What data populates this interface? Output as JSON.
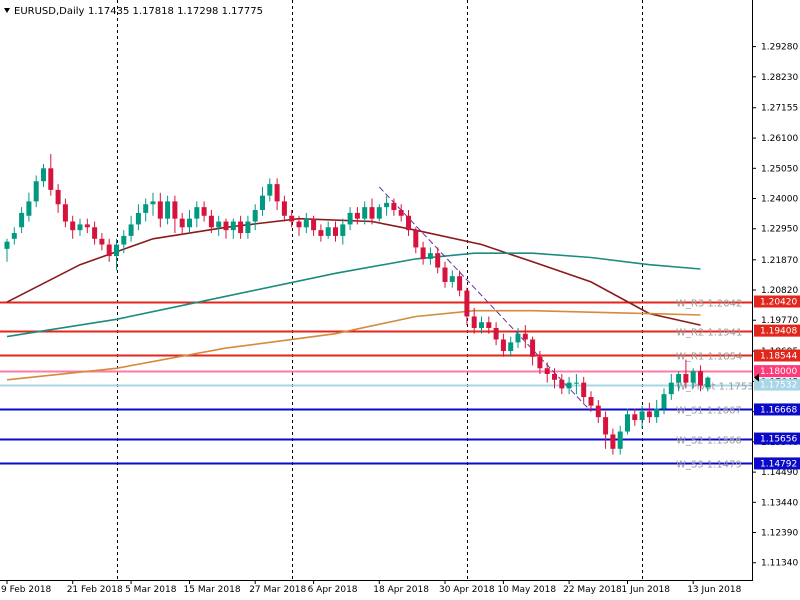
{
  "header": {
    "symbol": "EURUSD,Daily",
    "ohlc": "1.17435 1.17818 1.17298 1.17775"
  },
  "chart_data": {
    "type": "candlestick",
    "ylim": [
      1.1074,
      1.309
    ],
    "price_ticks": [
      "1.29280",
      "1.28230",
      "1.27155",
      "1.26100",
      "1.25050",
      "1.24000",
      "1.22950",
      "1.21870",
      "1.20820",
      "1.19770",
      "1.18695",
      "1.17645",
      "1.16590",
      "1.15540",
      "1.14490",
      "1.13440",
      "1.12390",
      "1.11340"
    ],
    "date_labels": [
      {
        "i": 0,
        "label": "9 Feb 2018"
      },
      {
        "i": 9,
        "label": "21 Feb 2018"
      },
      {
        "i": 17,
        "label": "5 Mar 2018"
      },
      {
        "i": 25,
        "label": "15 Mar 2018"
      },
      {
        "i": 34,
        "label": "27 Mar 2018"
      },
      {
        "i": 42,
        "label": "6 Apr 2018"
      },
      {
        "i": 51,
        "label": "18 Apr 2018"
      },
      {
        "i": 60,
        "label": "30 Apr 2018"
      },
      {
        "i": 68,
        "label": "10 May 2018"
      },
      {
        "i": 77,
        "label": "22 May 2018"
      },
      {
        "i": 85,
        "label": "1 Jun 2018"
      },
      {
        "i": 94,
        "label": "13 Jun 2018"
      }
    ],
    "separators": [
      15,
      39,
      63,
      87
    ],
    "bull_color": "#009a82",
    "bear_color": "#d6133c",
    "candles": [
      [
        1.2225,
        1.225,
        1.218,
        1.226
      ],
      [
        1.226,
        1.228,
        1.224,
        1.23
      ],
      [
        1.23,
        1.235,
        1.228,
        1.237
      ],
      [
        1.234,
        1.239,
        1.232,
        1.242
      ],
      [
        1.239,
        1.246,
        1.237,
        1.248
      ],
      [
        1.246,
        1.2505,
        1.244,
        1.252
      ],
      [
        1.2505,
        1.243,
        1.241,
        1.2555
      ],
      [
        1.243,
        1.238,
        1.235,
        1.245
      ],
      [
        1.238,
        1.232,
        1.23,
        1.24
      ],
      [
        1.232,
        1.229,
        1.226,
        1.234
      ],
      [
        1.229,
        1.231,
        1.227,
        1.233
      ],
      [
        1.231,
        1.23,
        1.228,
        1.233
      ],
      [
        1.23,
        1.226,
        1.224,
        1.232
      ],
      [
        1.226,
        1.224,
        1.222,
        1.228
      ],
      [
        1.224,
        1.22,
        1.218,
        1.226
      ],
      [
        1.22,
        1.224,
        1.215,
        1.226
      ],
      [
        1.224,
        1.227,
        1.221,
        1.229
      ],
      [
        1.227,
        1.231,
        1.225,
        1.234
      ],
      [
        1.231,
        1.235,
        1.229,
        1.238
      ],
      [
        1.235,
        1.238,
        1.232,
        1.24
      ],
      [
        1.238,
        1.239,
        1.234,
        1.242
      ],
      [
        1.239,
        1.233,
        1.23,
        1.242
      ],
      [
        1.233,
        1.239,
        1.231,
        1.241
      ],
      [
        1.239,
        1.233,
        1.228,
        1.241
      ],
      [
        1.233,
        1.23,
        1.228,
        1.235
      ],
      [
        1.23,
        1.233,
        1.228,
        1.236
      ],
      [
        1.233,
        1.237,
        1.23,
        1.239
      ],
      [
        1.237,
        1.234,
        1.232,
        1.239
      ],
      [
        1.234,
        1.23,
        1.228,
        1.236
      ],
      [
        1.23,
        1.232,
        1.227,
        1.234
      ],
      [
        1.232,
        1.229,
        1.226,
        1.233
      ],
      [
        1.229,
        1.232,
        1.226,
        1.233
      ],
      [
        1.232,
        1.228,
        1.226,
        1.234
      ],
      [
        1.228,
        1.232,
        1.226,
        1.234
      ],
      [
        1.232,
        1.236,
        1.229,
        1.238
      ],
      [
        1.236,
        1.241,
        1.234,
        1.244
      ],
      [
        1.241,
        1.245,
        1.239,
        1.247
      ],
      [
        1.245,
        1.239,
        1.236,
        1.247
      ],
      [
        1.239,
        1.234,
        1.232,
        1.241
      ],
      [
        1.234,
        1.232,
        1.23,
        1.236
      ],
      [
        1.232,
        1.23,
        1.227,
        1.234
      ],
      [
        1.23,
        1.233,
        1.228,
        1.235
      ],
      [
        1.233,
        1.229,
        1.227,
        1.234
      ],
      [
        1.229,
        1.227,
        1.225,
        1.231
      ],
      [
        1.227,
        1.23,
        1.226,
        1.232
      ],
      [
        1.23,
        1.227,
        1.225,
        1.232
      ],
      [
        1.227,
        1.231,
        1.224,
        1.233
      ],
      [
        1.231,
        1.235,
        1.229,
        1.237
      ],
      [
        1.235,
        1.233,
        1.231,
        1.237
      ],
      [
        1.233,
        1.237,
        1.231,
        1.239
      ],
      [
        1.237,
        1.233,
        1.231,
        1.24
      ],
      [
        1.233,
        1.237,
        1.232,
        1.238
      ],
      [
        1.237,
        1.2385,
        1.234,
        1.241
      ],
      [
        1.2385,
        1.236,
        1.234,
        1.24
      ],
      [
        1.236,
        1.234,
        1.232,
        1.238
      ],
      [
        1.234,
        1.229,
        1.227,
        1.236
      ],
      [
        1.229,
        1.223,
        1.221,
        1.23
      ],
      [
        1.223,
        1.219,
        1.217,
        1.225
      ],
      [
        1.219,
        1.221,
        1.217,
        1.223
      ],
      [
        1.221,
        1.216,
        1.214,
        1.223
      ],
      [
        1.216,
        1.211,
        1.209,
        1.218
      ],
      [
        1.211,
        1.213,
        1.209,
        1.215
      ],
      [
        1.213,
        1.208,
        1.206,
        1.215
      ],
      [
        1.208,
        1.199,
        1.196,
        1.209
      ],
      [
        1.199,
        1.195,
        1.193,
        1.202
      ],
      [
        1.195,
        1.197,
        1.193,
        1.199
      ],
      [
        1.197,
        1.195,
        1.193,
        1.199
      ],
      [
        1.195,
        1.191,
        1.189,
        1.197
      ],
      [
        1.191,
        1.187,
        1.185,
        1.193
      ],
      [
        1.187,
        1.19,
        1.185,
        1.192
      ],
      [
        1.19,
        1.193,
        1.188,
        1.195
      ],
      [
        1.193,
        1.191,
        1.188,
        1.196
      ],
      [
        1.191,
        1.185,
        1.182,
        1.192
      ],
      [
        1.185,
        1.181,
        1.179,
        1.187
      ],
      [
        1.181,
        1.179,
        1.176,
        1.183
      ],
      [
        1.179,
        1.177,
        1.174,
        1.181
      ],
      [
        1.177,
        1.174,
        1.172,
        1.179
      ],
      [
        1.174,
        1.176,
        1.172,
        1.178
      ],
      [
        1.176,
        1.176,
        1.172,
        1.179
      ],
      [
        1.176,
        1.171,
        1.169,
        1.178
      ],
      [
        1.171,
        1.168,
        1.166,
        1.173
      ],
      [
        1.168,
        1.164,
        1.162,
        1.17
      ],
      [
        1.164,
        1.158,
        1.153,
        1.166
      ],
      [
        1.158,
        1.153,
        1.151,
        1.16
      ],
      [
        1.153,
        1.159,
        1.151,
        1.161
      ],
      [
        1.159,
        1.165,
        1.158,
        1.167
      ],
      [
        1.165,
        1.163,
        1.161,
        1.167
      ],
      [
        1.163,
        1.166,
        1.16,
        1.168
      ],
      [
        1.166,
        1.164,
        1.162,
        1.169
      ],
      [
        1.164,
        1.167,
        1.162,
        1.17
      ],
      [
        1.167,
        1.172,
        1.165,
        1.174
      ],
      [
        1.172,
        1.176,
        1.17,
        1.179
      ],
      [
        1.176,
        1.179,
        1.173,
        1.18
      ],
      [
        1.179,
        1.176,
        1.174,
        1.184
      ],
      [
        1.176,
        1.18,
        1.174,
        1.181
      ],
      [
        1.18,
        1.175,
        1.173,
        1.182
      ],
      [
        1.17435,
        1.17775,
        1.17298,
        1.17818
      ]
    ],
    "ma_lines": [
      {
        "color": "#8b1a1a",
        "points": [
          [
            0,
            1.204
          ],
          [
            10,
            1.217
          ],
          [
            20,
            1.226
          ],
          [
            30,
            1.23
          ],
          [
            40,
            1.233
          ],
          [
            50,
            1.232
          ],
          [
            56,
            1.229
          ],
          [
            65,
            1.224
          ],
          [
            72,
            1.218
          ],
          [
            80,
            1.211
          ],
          [
            88,
            1.2
          ],
          [
            95,
            1.196
          ]
        ]
      },
      {
        "color": "#1b8c7e",
        "points": [
          [
            0,
            1.192
          ],
          [
            15,
            1.198
          ],
          [
            30,
            1.206
          ],
          [
            45,
            1.214
          ],
          [
            56,
            1.219
          ],
          [
            64,
            1.221
          ],
          [
            72,
            1.221
          ],
          [
            80,
            1.2195
          ],
          [
            88,
            1.217
          ],
          [
            95,
            1.2155
          ]
        ]
      },
      {
        "color": "#d58a3c",
        "points": [
          [
            0,
            1.177
          ],
          [
            15,
            1.181
          ],
          [
            30,
            1.188
          ],
          [
            45,
            1.193
          ],
          [
            56,
            1.199
          ],
          [
            64,
            1.201
          ],
          [
            72,
            1.201
          ],
          [
            80,
            1.2005
          ],
          [
            88,
            1.2
          ],
          [
            95,
            1.1995
          ]
        ]
      }
    ],
    "trend_line": {
      "color": "#6b2ea8",
      "points": [
        [
          51,
          1.244
        ],
        [
          80,
          1.166
        ]
      ]
    },
    "levels": [
      {
        "price": 1.2042,
        "color": "#e1261c",
        "label": "W_R3 1.2042",
        "tag": "1.20420",
        "tag_color": "#e1261c"
      },
      {
        "price": 1.19408,
        "color": "#e1261c",
        "label": "W_R2 1.1941",
        "tag": "1.19408",
        "tag_color": "#e1261c"
      },
      {
        "price": 1.18544,
        "color": "#e1261c",
        "label": "W_R1 1.1854",
        "tag": "1.18544",
        "tag_color": "#e1261c"
      },
      {
        "price": 1.18,
        "color": "#ff7aa6",
        "label": "",
        "tag": "1.18000",
        "tag_color": "#ff3a7a"
      },
      {
        "price": 1.17532,
        "color": "#a8d6e6",
        "label": "W_Pivot 1.1753",
        "tag": "1.17532",
        "tag_color": "#a8d6e6"
      },
      {
        "price": 1.16668,
        "color": "#0a0ac8",
        "label": "W_S1 1.1667",
        "tag": "1.16668",
        "tag_color": "#0a0ac8"
      },
      {
        "price": 1.15656,
        "color": "#0a0ac8",
        "label": "W_S2 1.1566",
        "tag": "1.15656",
        "tag_color": "#0a0ac8"
      },
      {
        "price": 1.14792,
        "color": "#0a0ac8",
        "label": "W_S3 1.1479",
        "tag": "1.14792",
        "tag_color": "#0a0ac8"
      }
    ],
    "current_price": "1.17775"
  }
}
